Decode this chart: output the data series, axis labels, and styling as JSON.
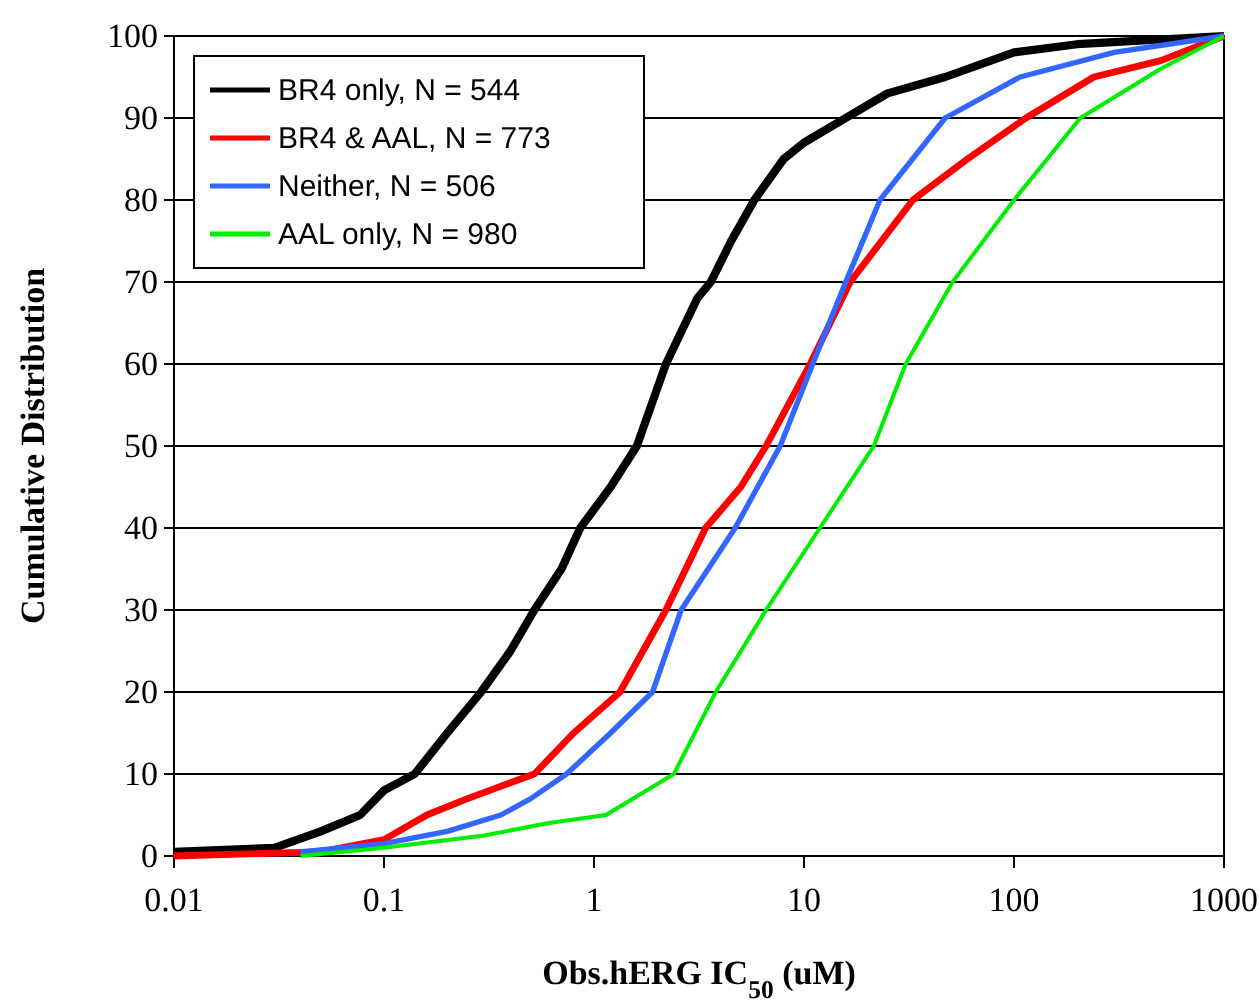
{
  "chart_data": {
    "type": "line",
    "xlabel": "Obs.hERG IC$_{50}$ (uM)",
    "ylabel": "Cumulative Distribution",
    "log": "x",
    "xlim": [
      0.01,
      1000
    ],
    "xticks": [
      0.01,
      0.1,
      1,
      10,
      100,
      1000
    ],
    "ylim": [
      0,
      100
    ],
    "yticks": [
      0,
      10,
      20,
      30,
      40,
      50,
      60,
      70,
      80,
      90,
      100
    ],
    "grid": "y",
    "legend": "top left",
    "marker": "none",
    "line_style": "solid",
    "series": [
      {
        "name": "BR4 only, N = 544",
        "color": "#000000",
        "x": [
          0.01,
          0.03,
          0.05,
          0.077,
          0.1,
          0.14,
          0.2,
          0.29,
          0.4,
          0.52,
          0.7,
          0.86,
          1.2,
          1.6,
          2.2,
          3.1,
          3.6,
          4.5,
          5.8,
          8,
          10,
          15.8,
          25,
          47,
          100,
          200,
          1000
        ],
        "values": [
          0.5,
          1,
          3,
          5,
          8,
          10,
          15,
          20,
          25,
          30,
          35,
          40,
          45,
          50,
          60,
          68,
          70,
          75,
          80,
          85,
          87,
          90,
          93,
          95,
          98,
          99,
          100
        ]
      },
      {
        "name": "BR4 & AAL, N = 773",
        "color": "#ff0000",
        "x": [
          0.01,
          0.05,
          0.1,
          0.16,
          0.25,
          0.52,
          0.8,
          1.33,
          2.2,
          3.4,
          5,
          6.6,
          10.7,
          16.6,
          33,
          60,
          114,
          240,
          500,
          1000
        ],
        "values": [
          0,
          0.5,
          2,
          5,
          7,
          10,
          15,
          20,
          30,
          40,
          45,
          50,
          60,
          70,
          80,
          85,
          90,
          95,
          97,
          100
        ]
      },
      {
        "name": "Neither, N = 506",
        "color": "#3366ff",
        "x": [
          0.04,
          0.1,
          0.2,
          0.36,
          0.5,
          0.74,
          1.2,
          1.9,
          2.6,
          4.7,
          7.7,
          11,
          15.8,
          23,
          47,
          107,
          300,
          1000
        ],
        "values": [
          0.5,
          1.5,
          3,
          5,
          7,
          10,
          15,
          20,
          30,
          40,
          50,
          60,
          70,
          80,
          90,
          95,
          98,
          100
        ]
      },
      {
        "name": "AAL only, N = 980",
        "color": "#00ee00",
        "x": [
          0.04,
          0.1,
          0.3,
          0.6,
          1.14,
          2.4,
          3.8,
          6.6,
          11.9,
          21.5,
          30.5,
          51,
          100,
          207,
          500,
          1000
        ],
        "values": [
          0,
          1,
          2.5,
          4,
          5,
          10,
          20,
          30,
          40,
          50,
          60,
          70,
          80,
          90,
          96,
          100
        ]
      }
    ]
  }
}
